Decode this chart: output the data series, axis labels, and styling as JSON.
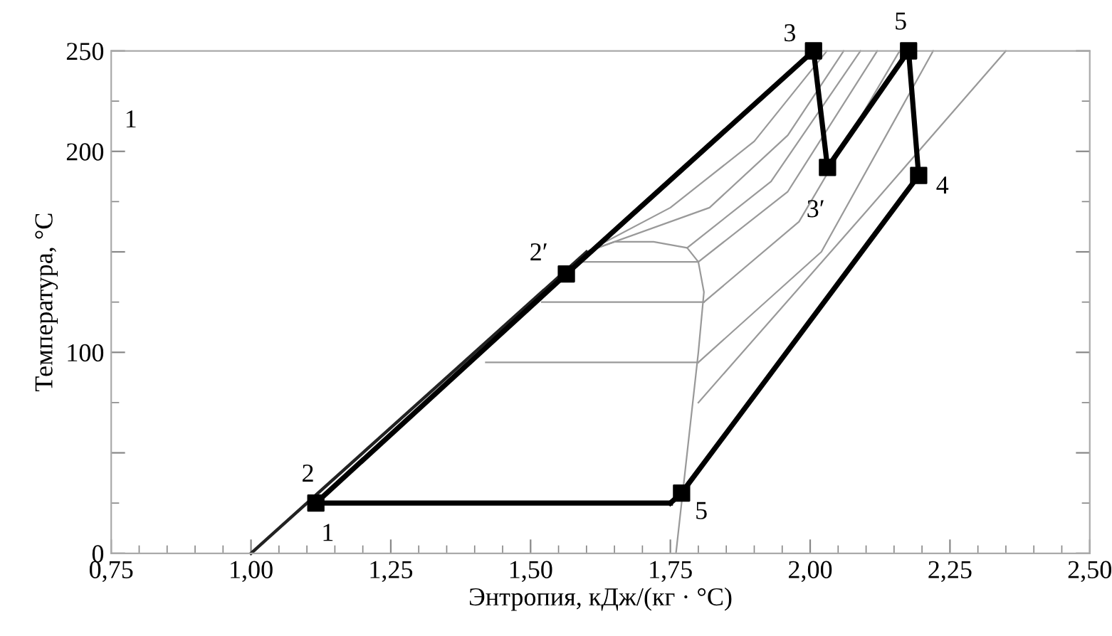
{
  "chart_data": {
    "type": "line",
    "xlabel": "Энтропия, кДж/(кг · °С)",
    "ylabel": "Температура, °С",
    "xlim": [
      0.75,
      2.5
    ],
    "ylim": [
      0,
      250
    ],
    "xticks": [
      {
        "value": 0.75,
        "label": "0,75"
      },
      {
        "value": 1.0,
        "label": "1,00"
      },
      {
        "value": 1.25,
        "label": "1,25"
      },
      {
        "value": 1.5,
        "label": "1,50"
      },
      {
        "value": 1.75,
        "label": "1,75"
      },
      {
        "value": 2.0,
        "label": "2,00"
      },
      {
        "value": 2.25,
        "label": "2,25"
      },
      {
        "value": 2.5,
        "label": "2,50"
      }
    ],
    "yticks": [
      0,
      {
        "value": 50,
        "label": null
      },
      100,
      {
        "value": 150,
        "label": null
      },
      200,
      250
    ],
    "grid": false,
    "legend": false,
    "line_style": "solid",
    "series": [
      {
        "color": "#999999",
        "x": [
          1.6,
          1.65,
          1.72,
          1.78,
          1.8,
          1.81,
          1.8,
          1.78,
          1.76
        ],
        "values": [
          150,
          155,
          155,
          152,
          145,
          130,
          100,
          50,
          0
        ]
      },
      {
        "color": "#999999",
        "x": [
          1.58,
          1.8
        ],
        "values": [
          145,
          145
        ]
      },
      {
        "color": "#999999",
        "x": [
          1.52,
          1.81
        ],
        "values": [
          125,
          125
        ]
      },
      {
        "color": "#999999",
        "x": [
          1.42,
          1.8
        ],
        "values": [
          95,
          95
        ]
      },
      {
        "color": "#999999",
        "x": [
          1.6,
          1.75,
          1.9,
          2.03
        ],
        "values": [
          150,
          172,
          205,
          250
        ]
      },
      {
        "color": "#999999",
        "x": [
          1.62,
          1.82,
          1.96,
          2.06
        ],
        "values": [
          152,
          172,
          208,
          250
        ]
      },
      {
        "color": "#999999",
        "x": [
          1.78,
          1.93,
          2.09
        ],
        "values": [
          152,
          185,
          250
        ]
      },
      {
        "color": "#999999",
        "x": [
          1.8,
          1.96,
          2.12
        ],
        "values": [
          145,
          180,
          250
        ]
      },
      {
        "color": "#999999",
        "x": [
          1.81,
          1.98,
          2.16
        ],
        "values": [
          125,
          165,
          250
        ]
      },
      {
        "color": "#999999",
        "x": [
          1.8,
          2.02,
          2.22
        ],
        "values": [
          95,
          150,
          250
        ]
      },
      {
        "color": "#999999",
        "x": [
          1.8,
          2.1,
          2.35
        ],
        "values": [
          75,
          170,
          250
        ]
      },
      {
        "color": "#222222",
        "x": [
          1.0,
          1.3,
          1.6
        ],
        "values": [
          0,
          75,
          150
        ]
      },
      {
        "color": "#000000",
        "x": [
          1.116,
          1.564,
          2.006
        ],
        "values": [
          25,
          139,
          250
        ]
      },
      {
        "color": "#000000",
        "x": [
          2.006,
          2.031
        ],
        "values": [
          250,
          192
        ]
      },
      {
        "color": "#000000",
        "x": [
          2.031,
          2.176
        ],
        "values": [
          192,
          250
        ]
      },
      {
        "color": "#000000",
        "x": [
          2.176,
          2.194
        ],
        "values": [
          250,
          188
        ]
      },
      {
        "color": "#000000",
        "x": [
          1.75,
          1.77,
          2.194
        ],
        "values": [
          25,
          30,
          188
        ]
      },
      {
        "color": "#000000",
        "x": [
          1.116,
          1.75
        ],
        "values": [
          25,
          25
        ]
      },
      {
        "type": "scatter",
        "marker": "square",
        "color": "#000000",
        "x": [
          1.116,
          1.564,
          2.006,
          2.031,
          2.176,
          2.194,
          1.77
        ],
        "values": [
          25,
          139,
          250,
          192,
          250,
          188,
          30
        ]
      }
    ],
    "annotations": [
      "1",
      {
        "text": "2",
        "x": 1.116,
        "y": 25
      },
      {
        "text": "1",
        "x": 1.116,
        "y": 25
      },
      {
        "text": "2′",
        "x": 1.564,
        "y": 139
      },
      {
        "text": "3",
        "x": 2.006,
        "y": 250
      },
      {
        "text": "3′",
        "x": 2.031,
        "y": 192
      },
      {
        "text": "5",
        "x": 2.176,
        "y": 250
      },
      {
        "text": "4",
        "x": 2.194,
        "y": 188
      },
      {
        "text": "5",
        "x": 1.77,
        "y": 30
      }
    ]
  }
}
